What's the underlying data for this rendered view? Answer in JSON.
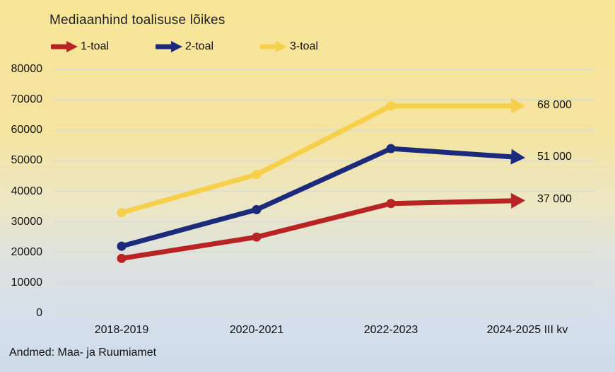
{
  "chart_data": {
    "type": "line",
    "title": "Mediaanhind toalisuse lõikes",
    "xlabel": "",
    "ylabel": "",
    "categories": [
      "2018-2019",
      "2020-2021",
      "2022-2023",
      "2024-2025 III kv"
    ],
    "ylim": [
      0,
      80000
    ],
    "yticks": [
      "80000",
      "70000",
      "60000",
      "50000",
      "40000",
      "30000",
      "20000",
      "10000",
      "0"
    ],
    "grid": true,
    "legend_position": "top-left",
    "series": [
      {
        "name": "1-toal",
        "color": "#b82424",
        "values": [
          18000,
          25000,
          36000,
          37000
        ],
        "end_label": "37 000"
      },
      {
        "name": "2-toal",
        "color": "#1c2a7c",
        "values": [
          22000,
          34000,
          54000,
          51000
        ],
        "end_label": "51 000"
      },
      {
        "name": "3-toal",
        "color": "#f6d04a",
        "values": [
          33000,
          45500,
          68000,
          68000
        ],
        "end_label": "68 000"
      }
    ],
    "source": "Andmed: Maa- ja Ruumiamet"
  }
}
